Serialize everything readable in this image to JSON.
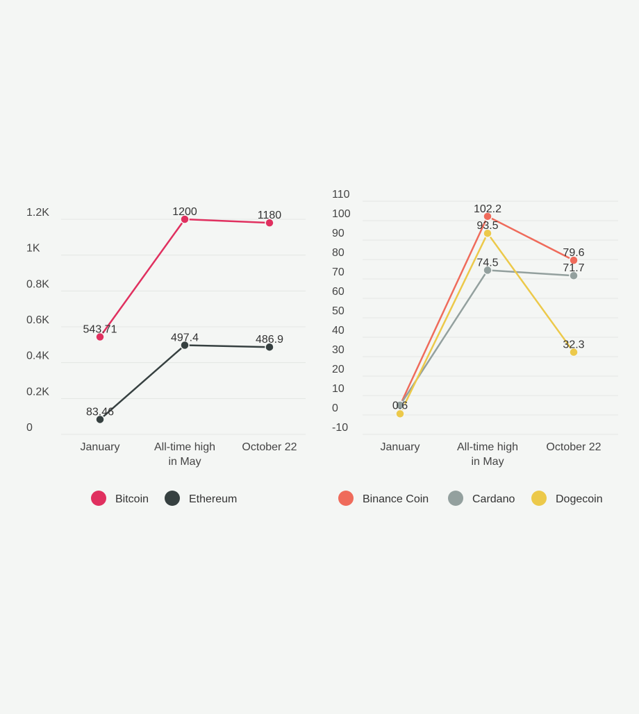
{
  "colors": {
    "Bitcoin": "#e0305f",
    "Ethereum": "#364040",
    "Binance Coin": "#ef6b5b",
    "Cardano": "#93a09e",
    "Dogecoin": "#ecc94a",
    "grid": "#e3e6e3",
    "background": "#f4f6f4"
  },
  "chart_data": [
    {
      "type": "line",
      "categories": [
        [
          "January"
        ],
        [
          "All-time high",
          "in May"
        ],
        [
          "October 22"
        ]
      ],
      "ylim": [
        0,
        1200
      ],
      "ticks": [
        0,
        200,
        400,
        600,
        800,
        1000,
        1200
      ],
      "tick_labels": [
        "0",
        "0.2K",
        "0.4K",
        "0.6K",
        "0.8K",
        "1K",
        "1.2K"
      ],
      "grid": true,
      "legend_position": "bottom",
      "series": [
        {
          "name": "Bitcoin",
          "values": [
            543.71,
            1200,
            1180
          ],
          "labels": [
            "543.71",
            "1200",
            "1180"
          ]
        },
        {
          "name": "Ethereum",
          "values": [
            83.46,
            497.4,
            486.9
          ],
          "labels": [
            "83.46",
            "497.4",
            "486.9"
          ]
        }
      ]
    },
    {
      "type": "line",
      "categories": [
        [
          "January"
        ],
        [
          "All-time high",
          "in May"
        ],
        [
          "October 22"
        ]
      ],
      "ylim": [
        -10,
        110
      ],
      "ticks": [
        -10,
        0,
        10,
        20,
        30,
        40,
        50,
        60,
        70,
        80,
        90,
        100,
        110
      ],
      "tick_labels": [
        "-10",
        "0",
        "10",
        "20",
        "30",
        "40",
        "50",
        "60",
        "70",
        "80",
        "90",
        "100",
        "110"
      ],
      "grid": true,
      "legend_position": "bottom",
      "series": [
        {
          "name": "Binance Coin",
          "values": [
            5,
            102.2,
            79.6
          ],
          "labels": [
            "",
            "102.2",
            "79.6"
          ]
        },
        {
          "name": "Cardano",
          "values": [
            5,
            74.5,
            71.7
          ],
          "labels": [
            "",
            "74.5",
            "71.7"
          ]
        },
        {
          "name": "Dogecoin",
          "values": [
            0.6,
            93.5,
            32.3
          ],
          "labels": [
            "0.6",
            "93.5",
            "32.3"
          ]
        }
      ]
    }
  ]
}
